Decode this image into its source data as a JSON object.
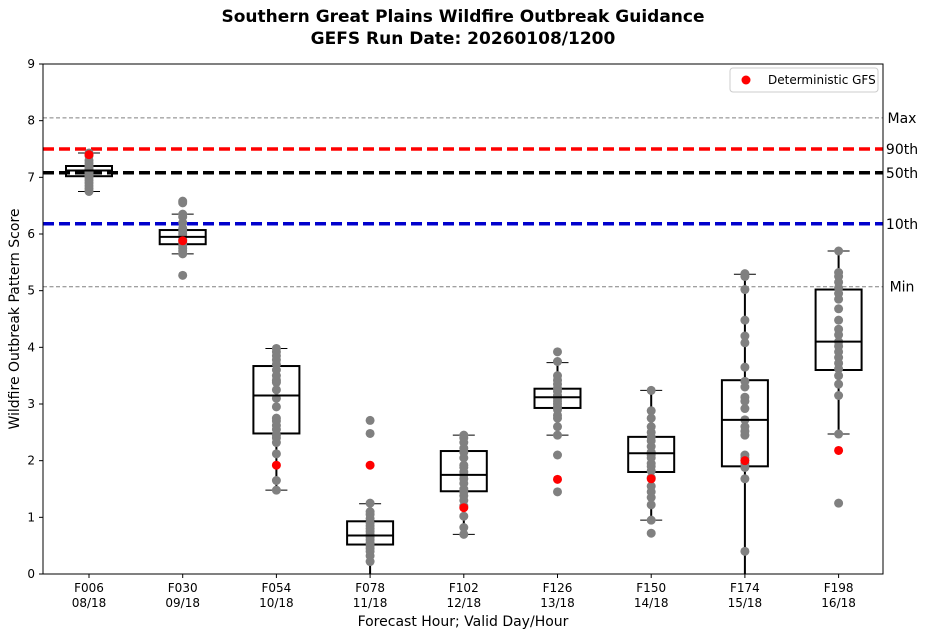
{
  "chart_data": {
    "type": "box",
    "title_line1": "Southern Great Plains Wildfire Outbreak Guidance",
    "title_line2": "GEFS Run Date: 20260108/1200",
    "xlabel": "Forecast Hour; Valid Day/Hour",
    "ylabel": "Wildfire Outbreak Pattern Score",
    "ylim": [
      0,
      9
    ],
    "yticks": [
      "0",
      "1",
      "2",
      "3",
      "4",
      "5",
      "6",
      "7",
      "8",
      "9"
    ],
    "legend": {
      "position": "top-right",
      "label": "Deterministic GFS"
    },
    "reference_lines": [
      {
        "label": "Max",
        "value": 8.05,
        "color": "#808080",
        "style": "thin-dashed"
      },
      {
        "label": "90th",
        "value": 7.5,
        "color": "#ff0000",
        "style": "thick-dashed"
      },
      {
        "label": "50th",
        "value": 7.08,
        "color": "#000000",
        "style": "thick-dashed"
      },
      {
        "label": "10th",
        "value": 6.18,
        "color": "#0000cc",
        "style": "thick-dashed"
      },
      {
        "label": "Min",
        "value": 5.07,
        "color": "#808080",
        "style": "thin-dashed"
      }
    ],
    "categories": [
      {
        "hour": "F006",
        "valid": "08/18",
        "q1": 7.02,
        "median": 7.12,
        "q3": 7.2,
        "whisker_low": 6.75,
        "whisker_high": 7.43,
        "deterministic": 7.4,
        "members": [
          7.43,
          7.38,
          7.3,
          7.25,
          7.2,
          7.18,
          7.15,
          7.13,
          7.12,
          7.1,
          7.08,
          7.05,
          7.02,
          7.0,
          6.95,
          6.9,
          6.85,
          6.8,
          6.75
        ]
      },
      {
        "hour": "F030",
        "valid": "09/18",
        "q1": 5.82,
        "median": 5.95,
        "q3": 6.07,
        "whisker_low": 5.65,
        "whisker_high": 6.35,
        "deterministic": 5.88,
        "members": [
          6.58,
          6.55,
          6.35,
          6.3,
          6.2,
          6.1,
          6.05,
          6.0,
          5.95,
          5.9,
          5.85,
          5.8,
          5.75,
          5.7,
          5.65,
          5.27
        ]
      },
      {
        "hour": "F054",
        "valid": "10/18",
        "q1": 2.48,
        "median": 3.15,
        "q3": 3.67,
        "whisker_low": 1.48,
        "whisker_high": 3.98,
        "deterministic": 1.92,
        "members": [
          3.98,
          3.92,
          3.85,
          3.78,
          3.7,
          3.6,
          3.5,
          3.42,
          3.38,
          3.25,
          3.1,
          2.95,
          2.75,
          2.7,
          2.62,
          2.55,
          2.45,
          2.4,
          2.32,
          2.12,
          1.65,
          1.48
        ]
      },
      {
        "hour": "F078",
        "valid": "11/18",
        "q1": 0.52,
        "median": 0.68,
        "q3": 0.93,
        "whisker_low": 0.0,
        "whisker_high": 1.24,
        "deterministic": 1.92,
        "members": [
          2.71,
          2.48,
          1.25,
          1.1,
          1.05,
          0.98,
          0.9,
          0.85,
          0.8,
          0.75,
          0.7,
          0.65,
          0.6,
          0.55,
          0.5,
          0.45,
          0.4,
          0.32,
          0.22
        ]
      },
      {
        "hour": "F102",
        "valid": "12/18",
        "q1": 1.46,
        "median": 1.75,
        "q3": 2.17,
        "whisker_low": 0.7,
        "whisker_high": 2.45,
        "deterministic": 1.17,
        "members": [
          2.45,
          2.4,
          2.32,
          2.22,
          2.15,
          2.05,
          1.92,
          1.88,
          1.8,
          1.75,
          1.68,
          1.6,
          1.5,
          1.45,
          1.38,
          1.3,
          1.2,
          1.02,
          0.82,
          0.7
        ]
      },
      {
        "hour": "F126",
        "valid": "13/18",
        "q1": 2.93,
        "median": 3.12,
        "q3": 3.27,
        "whisker_low": 2.45,
        "whisker_high": 3.73,
        "deterministic": 1.67,
        "members": [
          3.92,
          3.75,
          3.5,
          3.42,
          3.35,
          3.28,
          3.22,
          3.15,
          3.1,
          3.05,
          3.0,
          2.95,
          2.9,
          2.8,
          2.75,
          2.6,
          2.45,
          2.1,
          1.45
        ]
      },
      {
        "hour": "F150",
        "valid": "14/18",
        "q1": 1.8,
        "median": 2.13,
        "q3": 2.42,
        "whisker_low": 0.95,
        "whisker_high": 3.24,
        "deterministic": 1.68,
        "members": [
          3.24,
          2.88,
          2.75,
          2.6,
          2.5,
          2.42,
          2.35,
          2.25,
          2.15,
          2.1,
          2.05,
          1.95,
          1.9,
          1.82,
          1.7,
          1.55,
          1.45,
          1.35,
          1.22,
          0.95,
          0.72
        ]
      },
      {
        "hour": "F174",
        "valid": "15/18",
        "q1": 1.9,
        "median": 2.72,
        "q3": 3.42,
        "whisker_low": 0.0,
        "whisker_high": 5.29,
        "deterministic": 2.0,
        "members": [
          5.3,
          5.25,
          5.02,
          4.48,
          4.2,
          4.08,
          3.65,
          3.4,
          3.3,
          3.12,
          3.05,
          2.92,
          2.72,
          2.6,
          2.52,
          2.45,
          2.1,
          2.05,
          1.95,
          1.88,
          1.68,
          0.4
        ]
      },
      {
        "hour": "F198",
        "valid": "16/18",
        "q1": 3.6,
        "median": 4.1,
        "q3": 5.02,
        "whisker_low": 2.47,
        "whisker_high": 5.7,
        "deterministic": 2.18,
        "members": [
          5.7,
          5.32,
          5.25,
          5.15,
          5.05,
          4.95,
          4.85,
          4.68,
          4.48,
          4.32,
          4.22,
          4.1,
          4.02,
          3.92,
          3.82,
          3.72,
          3.62,
          3.5,
          3.35,
          3.15,
          2.47,
          1.25
        ]
      }
    ]
  }
}
